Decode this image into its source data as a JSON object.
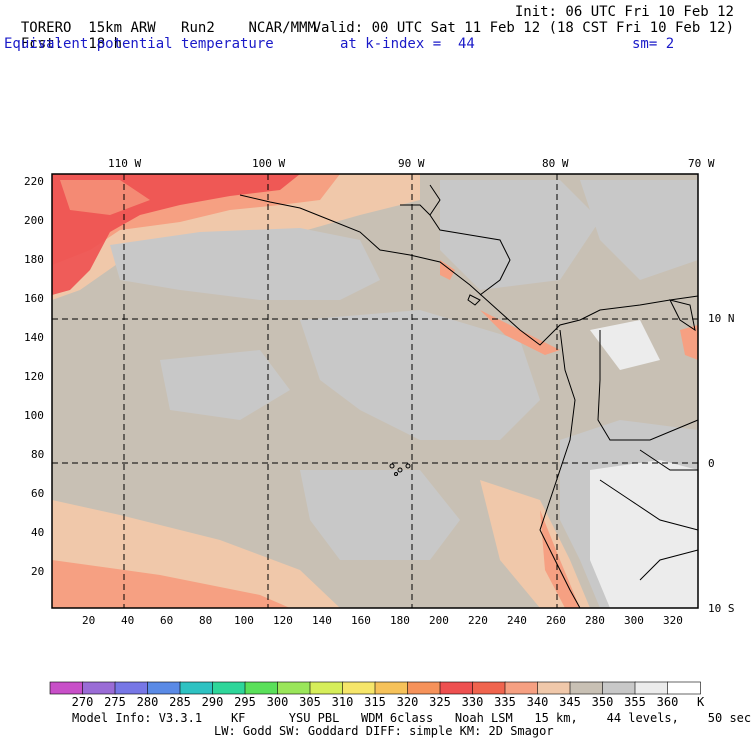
{
  "header": {
    "model": "TORERO",
    "resolution": "15km ARW",
    "run": "Run2",
    "org": "NCAR/MMM",
    "init": "Init: 06 UTC Fri 10 Feb 12",
    "fcst_label": "Fcst:",
    "fcst_value": "18 h",
    "valid": "Valid: 00 UTC Sat 11 Feb 12 (18 CST Fri 10 Feb 12)",
    "field": "Equivalent potential temperature",
    "level": "at k-index =  44",
    "smooth": "sm= 2"
  },
  "map": {
    "lon_labels": [
      "110 W",
      "100 W",
      "90 W",
      "80 W",
      "70 W"
    ],
    "lat_labels": [
      "10 N",
      "0",
      "10 S"
    ],
    "y_ticks": [
      "220",
      "200",
      "180",
      "160",
      "140",
      "120",
      "100",
      "80",
      "60",
      "40",
      "20"
    ],
    "x_ticks": [
      "20",
      "40",
      "60",
      "80",
      "100",
      "120",
      "140",
      "160",
      "180",
      "200",
      "220",
      "240",
      "260",
      "280",
      "300",
      "320"
    ]
  },
  "colorbar": {
    "labels": [
      "270",
      "275",
      "280",
      "285",
      "290",
      "295",
      "300",
      "305",
      "310",
      "315",
      "320",
      "325",
      "330",
      "335",
      "340",
      "345",
      "350",
      "355",
      "360"
    ],
    "unit": "K",
    "colors": [
      "#c84fc8",
      "#9a6cd6",
      "#7777e6",
      "#5a8ae6",
      "#2ec2c2",
      "#2ed69a",
      "#5ae05a",
      "#9ae65a",
      "#d6ee5a",
      "#f6e66a",
      "#f6c25a",
      "#f6925a",
      "#ee5050",
      "#f0644e",
      "#f6a082",
      "#f0c8aa",
      "#c8c0b4",
      "#c8c8c8",
      "#ececec",
      "#ffffff"
    ]
  },
  "footer": {
    "line1": "Model Info: V3.3.1    KF      YSU PBL   WDM 6class   Noah LSM   15 km,    44 levels,    50 sec",
    "line2": "LW: Godd SW: Goddard DIFF: simple KM: 2D Smagor"
  }
}
